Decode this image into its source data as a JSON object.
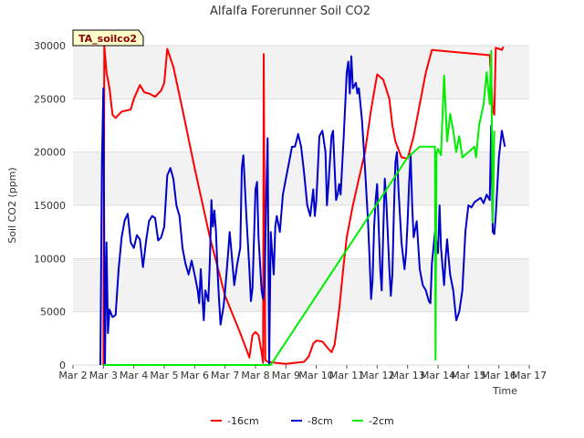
{
  "chart_data": {
    "type": "line",
    "title": "Alfalfa Forerunner Soil CO2",
    "xlabel": "Time",
    "ylabel": "Soil CO2 (ppm)",
    "badge": "TA_soilco2",
    "xlim": [
      2,
      17
    ],
    "ylim": [
      0,
      30000
    ],
    "x_ticks": [
      {
        "v": 2,
        "label": "Mar 2"
      },
      {
        "v": 3,
        "label": "Mar 3"
      },
      {
        "v": 4,
        "label": "Mar 4"
      },
      {
        "v": 5,
        "label": "Mar 5"
      },
      {
        "v": 6,
        "label": "Mar 6"
      },
      {
        "v": 7,
        "label": "Mar 7"
      },
      {
        "v": 8,
        "label": "Mar 8"
      },
      {
        "v": 9,
        "label": "Mar 9"
      },
      {
        "v": 10,
        "label": "Mar 10"
      },
      {
        "v": 11,
        "label": "Mar 11"
      },
      {
        "v": 12,
        "label": "Mar 12"
      },
      {
        "v": 13,
        "label": "Mar 13"
      },
      {
        "v": 14,
        "label": "Mar 14"
      },
      {
        "v": 15,
        "label": "Mar 15"
      },
      {
        "v": 16,
        "label": "Mar 16"
      },
      {
        "v": 17,
        "label": "Mar 17"
      }
    ],
    "y_ticks": [
      {
        "v": 0,
        "label": "0"
      },
      {
        "v": 5000,
        "label": "5000"
      },
      {
        "v": 10000,
        "label": "10000"
      },
      {
        "v": 15000,
        "label": "15000"
      },
      {
        "v": 20000,
        "label": "20000"
      },
      {
        "v": 25000,
        "label": "25000"
      },
      {
        "v": 30000,
        "label": "30000"
      }
    ],
    "series": [
      {
        "name": "-16cm",
        "color": "#ff0000",
        "points": [
          [
            3.0,
            0
          ],
          [
            3.03,
            30000
          ],
          [
            3.1,
            27500
          ],
          [
            3.2,
            26000
          ],
          [
            3.3,
            23500
          ],
          [
            3.4,
            23200
          ],
          [
            3.6,
            23800
          ],
          [
            3.9,
            24000
          ],
          [
            4.0,
            25000
          ],
          [
            4.2,
            26300
          ],
          [
            4.35,
            25600
          ],
          [
            4.5,
            25500
          ],
          [
            4.7,
            25200
          ],
          [
            4.9,
            25800
          ],
          [
            5.0,
            26500
          ],
          [
            5.1,
            29700
          ],
          [
            5.3,
            28000
          ],
          [
            5.6,
            24000
          ],
          [
            6.0,
            18500
          ],
          [
            6.5,
            12000
          ],
          [
            7.0,
            6500
          ],
          [
            7.5,
            3000
          ],
          [
            7.8,
            700
          ],
          [
            7.9,
            2800
          ],
          [
            8.0,
            3100
          ],
          [
            8.1,
            2800
          ],
          [
            8.2,
            1200
          ],
          [
            8.25,
            200
          ],
          [
            8.27,
            29200
          ],
          [
            8.32,
            500
          ],
          [
            8.4,
            300
          ],
          [
            8.7,
            200
          ],
          [
            9.0,
            100
          ],
          [
            9.6,
            300
          ],
          [
            9.75,
            800
          ],
          [
            9.9,
            2000
          ],
          [
            10.0,
            2300
          ],
          [
            10.2,
            2200
          ],
          [
            10.4,
            1500
          ],
          [
            10.5,
            1200
          ],
          [
            10.6,
            1900
          ],
          [
            10.75,
            5200
          ],
          [
            10.9,
            9500
          ],
          [
            11.0,
            12000
          ],
          [
            11.2,
            15000
          ],
          [
            11.4,
            17500
          ],
          [
            11.6,
            20000
          ],
          [
            11.8,
            24000
          ],
          [
            12.0,
            27300
          ],
          [
            12.2,
            26800
          ],
          [
            12.4,
            25000
          ],
          [
            12.5,
            22500
          ],
          [
            12.6,
            21000
          ],
          [
            12.8,
            19500
          ],
          [
            13.0,
            19400
          ],
          [
            13.2,
            21500
          ],
          [
            13.4,
            24500
          ],
          [
            13.6,
            27500
          ],
          [
            13.8,
            29600
          ],
          [
            15.7,
            29100
          ],
          [
            15.8,
            24000
          ],
          [
            15.85,
            23500
          ],
          [
            15.9,
            29800
          ],
          [
            16.1,
            29600
          ],
          [
            16.15,
            29900
          ]
        ]
      },
      {
        "name": "-8cm",
        "color": "#0000cc",
        "points": [
          [
            2.9,
            0
          ],
          [
            2.95,
            19000
          ],
          [
            3.0,
            26000
          ],
          [
            3.05,
            0
          ],
          [
            3.1,
            11500
          ],
          [
            3.15,
            3000
          ],
          [
            3.2,
            5200
          ],
          [
            3.3,
            4500
          ],
          [
            3.4,
            4700
          ],
          [
            3.5,
            9000
          ],
          [
            3.6,
            12000
          ],
          [
            3.7,
            13600
          ],
          [
            3.8,
            14200
          ],
          [
            3.9,
            11500
          ],
          [
            4.0,
            11000
          ],
          [
            4.1,
            12200
          ],
          [
            4.2,
            11800
          ],
          [
            4.3,
            9200
          ],
          [
            4.4,
            11600
          ],
          [
            4.5,
            13500
          ],
          [
            4.6,
            14000
          ],
          [
            4.7,
            13800
          ],
          [
            4.8,
            11700
          ],
          [
            4.9,
            12000
          ],
          [
            5.0,
            13000
          ],
          [
            5.1,
            17800
          ],
          [
            5.2,
            18500
          ],
          [
            5.3,
            17500
          ],
          [
            5.4,
            15000
          ],
          [
            5.5,
            14000
          ],
          [
            5.6,
            11000
          ],
          [
            5.7,
            9500
          ],
          [
            5.8,
            8500
          ],
          [
            5.9,
            9800
          ],
          [
            6.0,
            8500
          ],
          [
            6.1,
            7000
          ],
          [
            6.15,
            5800
          ],
          [
            6.2,
            9000
          ],
          [
            6.3,
            4200
          ],
          [
            6.35,
            7000
          ],
          [
            6.45,
            6000
          ],
          [
            6.5,
            9800
          ],
          [
            6.55,
            15500
          ],
          [
            6.6,
            13000
          ],
          [
            6.65,
            14500
          ],
          [
            6.7,
            12500
          ],
          [
            6.75,
            9000
          ],
          [
            6.8,
            6200
          ],
          [
            6.85,
            3800
          ],
          [
            6.95,
            5500
          ],
          [
            7.0,
            7000
          ],
          [
            7.1,
            10500
          ],
          [
            7.15,
            12500
          ],
          [
            7.2,
            11000
          ],
          [
            7.3,
            7500
          ],
          [
            7.4,
            9500
          ],
          [
            7.5,
            11000
          ],
          [
            7.55,
            18500
          ],
          [
            7.6,
            19700
          ],
          [
            7.7,
            14000
          ],
          [
            7.8,
            9000
          ],
          [
            7.85,
            6000
          ],
          [
            7.9,
            7200
          ],
          [
            8.0,
            16500
          ],
          [
            8.05,
            17200
          ],
          [
            8.1,
            12000
          ],
          [
            8.2,
            7000
          ],
          [
            8.25,
            6200
          ],
          [
            8.3,
            7500
          ],
          [
            8.35,
            15500
          ],
          [
            8.4,
            21300
          ],
          [
            8.45,
            0
          ],
          [
            8.5,
            12500
          ],
          [
            8.6,
            8500
          ],
          [
            8.65,
            13000
          ],
          [
            8.7,
            14000
          ],
          [
            8.8,
            12500
          ],
          [
            8.9,
            16000
          ],
          [
            9.0,
            17500
          ],
          [
            9.1,
            19000
          ],
          [
            9.2,
            20500
          ],
          [
            9.3,
            20500
          ],
          [
            9.4,
            21700
          ],
          [
            9.5,
            20500
          ],
          [
            9.6,
            18000
          ],
          [
            9.7,
            15000
          ],
          [
            9.8,
            14000
          ],
          [
            9.9,
            16500
          ],
          [
            9.95,
            14000
          ],
          [
            10.0,
            15500
          ],
          [
            10.1,
            21500
          ],
          [
            10.2,
            22000
          ],
          [
            10.3,
            20000
          ],
          [
            10.35,
            15000
          ],
          [
            10.4,
            17000
          ],
          [
            10.5,
            21500
          ],
          [
            10.55,
            22000
          ],
          [
            10.6,
            18500
          ],
          [
            10.65,
            15500
          ],
          [
            10.7,
            16000
          ],
          [
            10.75,
            17000
          ],
          [
            10.8,
            16000
          ],
          [
            10.9,
            21500
          ],
          [
            11.0,
            27500
          ],
          [
            11.05,
            28500
          ],
          [
            11.1,
            25500
          ],
          [
            11.15,
            29000
          ],
          [
            11.2,
            26000
          ],
          [
            11.3,
            26500
          ],
          [
            11.35,
            25500
          ],
          [
            11.4,
            26000
          ],
          [
            11.5,
            23000
          ],
          [
            11.6,
            18500
          ],
          [
            11.7,
            13500
          ],
          [
            11.75,
            10000
          ],
          [
            11.8,
            6200
          ],
          [
            11.85,
            8000
          ],
          [
            11.9,
            13000
          ],
          [
            11.95,
            15500
          ],
          [
            12.0,
            17000
          ],
          [
            12.05,
            13000
          ],
          [
            12.1,
            9000
          ],
          [
            12.15,
            7000
          ],
          [
            12.2,
            12500
          ],
          [
            12.25,
            17500
          ],
          [
            12.3,
            15500
          ],
          [
            12.4,
            9000
          ],
          [
            12.45,
            6500
          ],
          [
            12.5,
            8500
          ],
          [
            12.55,
            14500
          ],
          [
            12.6,
            19000
          ],
          [
            12.65,
            20000
          ],
          [
            12.7,
            16500
          ],
          [
            12.8,
            11500
          ],
          [
            12.9,
            9000
          ],
          [
            12.95,
            10500
          ],
          [
            13.0,
            13500
          ],
          [
            13.05,
            17000
          ],
          [
            13.1,
            19800
          ],
          [
            13.15,
            15000
          ],
          [
            13.2,
            12000
          ],
          [
            13.3,
            13500
          ],
          [
            13.4,
            9000
          ],
          [
            13.5,
            7500
          ],
          [
            13.6,
            7000
          ],
          [
            13.7,
            6000
          ],
          [
            13.75,
            5800
          ],
          [
            13.8,
            9500
          ],
          [
            13.85,
            11000
          ],
          [
            13.9,
            12500
          ],
          [
            14.0,
            10500
          ],
          [
            14.05,
            15000
          ],
          [
            14.1,
            11000
          ],
          [
            14.2,
            7500
          ],
          [
            14.25,
            10000
          ],
          [
            14.3,
            11800
          ],
          [
            14.35,
            10000
          ],
          [
            14.4,
            8500
          ],
          [
            14.5,
            7000
          ],
          [
            14.6,
            4200
          ],
          [
            14.7,
            5000
          ],
          [
            14.8,
            7000
          ],
          [
            14.9,
            12500
          ],
          [
            15.0,
            15000
          ],
          [
            15.1,
            14800
          ],
          [
            15.2,
            15300
          ],
          [
            15.3,
            15500
          ],
          [
            15.4,
            15700
          ],
          [
            15.5,
            15200
          ],
          [
            15.6,
            16000
          ],
          [
            15.7,
            15500
          ],
          [
            15.75,
            22500
          ],
          [
            15.8,
            12500
          ],
          [
            15.85,
            12300
          ],
          [
            15.9,
            14000
          ],
          [
            16.0,
            19500
          ],
          [
            16.1,
            22000
          ],
          [
            16.2,
            20500
          ]
        ]
      },
      {
        "name": "-2cm",
        "color": "#00ee00",
        "points": [
          [
            3.0,
            0
          ],
          [
            8.3,
            0
          ],
          [
            8.5,
            0
          ],
          [
            13.0,
            19500
          ],
          [
            13.4,
            20500
          ],
          [
            13.9,
            20500
          ],
          [
            13.92,
            500
          ],
          [
            13.95,
            19800
          ],
          [
            14.0,
            20300
          ],
          [
            14.1,
            19700
          ],
          [
            14.2,
            27200
          ],
          [
            14.3,
            21000
          ],
          [
            14.4,
            23600
          ],
          [
            14.5,
            22000
          ],
          [
            14.6,
            20000
          ],
          [
            14.7,
            21500
          ],
          [
            14.8,
            19500
          ],
          [
            15.0,
            20000
          ],
          [
            15.2,
            20500
          ],
          [
            15.25,
            19500
          ],
          [
            15.35,
            22500
          ],
          [
            15.5,
            24500
          ],
          [
            15.6,
            27500
          ],
          [
            15.7,
            24500
          ],
          [
            15.75,
            29500
          ],
          [
            15.8,
            13400
          ],
          [
            15.85,
            22000
          ]
        ]
      }
    ]
  }
}
